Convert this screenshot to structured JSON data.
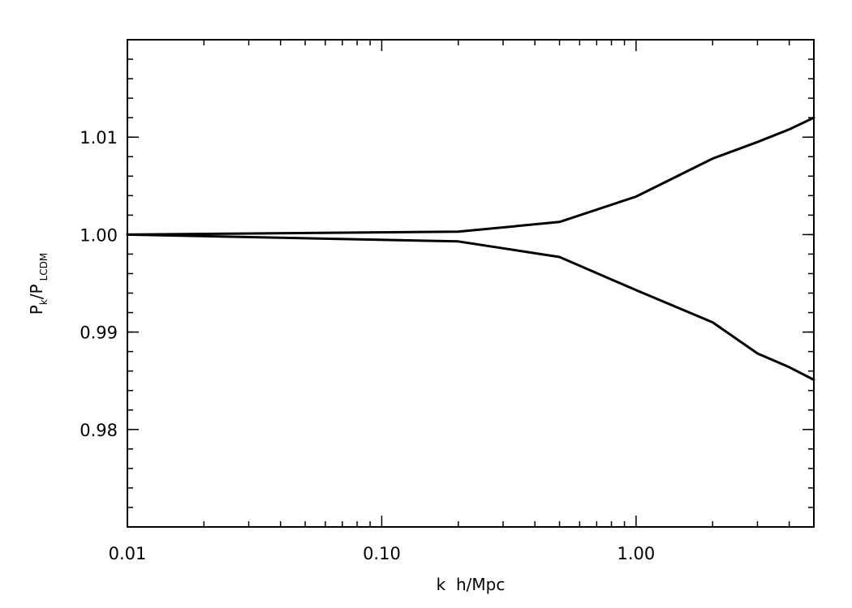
{
  "chart_data": {
    "type": "line",
    "title": "",
    "xlabel": "k  h/Mpc",
    "ylabel": {
      "main": "P",
      "sub1": "k",
      "mid": "/P",
      "sub2": "LCDM"
    },
    "x_scale": "log",
    "xlim": [
      0.01,
      5.0
    ],
    "ylim": [
      0.97,
      1.02
    ],
    "x_ticks": [
      {
        "value": 0.01,
        "label": "0.01"
      },
      {
        "value": 0.1,
        "label": "0.10"
      },
      {
        "value": 1.0,
        "label": "1.00"
      }
    ],
    "y_ticks": [
      {
        "value": 0.98,
        "label": "0.98"
      },
      {
        "value": 0.99,
        "label": "0.99"
      },
      {
        "value": 1.0,
        "label": "1.00"
      },
      {
        "value": 1.01,
        "label": "1.01"
      }
    ],
    "grid": false,
    "legend": "none",
    "series": [
      {
        "color": "#000000",
        "x": [
          0.01,
          0.2,
          0.5,
          1.0,
          2.0,
          3.0,
          4.0,
          5.0
        ],
        "y": [
          1.0,
          1.0003,
          1.0013,
          1.0039,
          1.0078,
          1.0095,
          1.0108,
          1.012
        ]
      },
      {
        "color": "#000000",
        "x": [
          0.01,
          0.2,
          0.5,
          1.0,
          2.0,
          3.0,
          4.0,
          5.0
        ],
        "y": [
          1.0,
          0.9993,
          0.9977,
          0.9943,
          0.991,
          0.9878,
          0.9864,
          0.9851
        ]
      }
    ]
  }
}
